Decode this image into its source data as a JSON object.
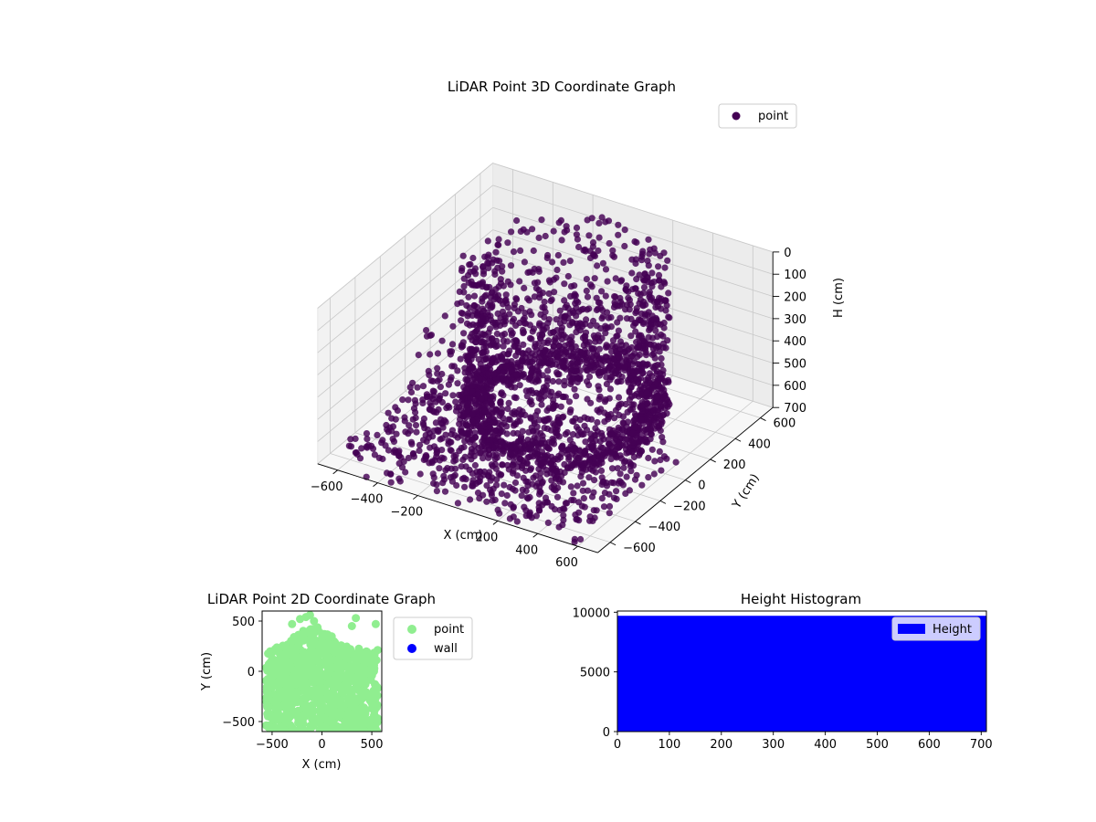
{
  "chart_data": [
    {
      "type": "scatter3d",
      "title": "LiDAR Point 3D Coordinate Graph",
      "xlabel": "X (cm)",
      "ylabel": "Y (cm)",
      "zlabel": "H (cm)",
      "xlim": [
        -700,
        700
      ],
      "ylim": [
        -700,
        700
      ],
      "zlim": [
        700,
        0
      ],
      "x_ticks": [
        -600,
        -400,
        -200,
        200,
        400,
        600
      ],
      "x_tick_labels": [
        "−600",
        "−400",
        "−200",
        "200",
        "400",
        "600"
      ],
      "y_ticks": [
        -600,
        -400,
        -200,
        0,
        200,
        400,
        600
      ],
      "y_tick_labels": [
        "−600",
        "−400",
        "−200",
        "0",
        "200",
        "400",
        "600"
      ],
      "z_ticks": [
        0,
        100,
        200,
        300,
        400,
        500,
        600,
        700
      ],
      "z_tick_labels": [
        "0",
        "100",
        "200",
        "300",
        "400",
        "500",
        "600",
        "700"
      ],
      "grid": true,
      "legend": {
        "placement": "upper-right",
        "entries": [
          {
            "label": "point",
            "color": "#440154"
          }
        ]
      },
      "series": [
        {
          "name": "point",
          "color": "#440154",
          "structure": "dense cylindrical shell of scanned points: radius ~450 cm centred near (x=0, y=150), spanning heights ~0 to 700 cm, plus a sparse scatter of outlier points across the floor extending to the axis limits"
        }
      ]
    },
    {
      "type": "scatter",
      "title": "LiDAR Point 2D Coordinate Graph",
      "xlabel": "X (cm)",
      "ylabel": "Y (cm)",
      "xlim": [
        -600,
        600
      ],
      "ylim": [
        -600,
        600
      ],
      "x_ticks": [
        -500,
        0,
        500
      ],
      "x_tick_labels": [
        "−500",
        "0",
        "500"
      ],
      "y_ticks": [
        -500,
        0,
        500
      ],
      "y_tick_labels": [
        "−500",
        "0",
        "500"
      ],
      "legend": {
        "placement": "outside-right",
        "entries": [
          {
            "label": "point",
            "color": "#90ee90"
          },
          {
            "label": "wall",
            "color": "#0000ff"
          }
        ]
      },
      "series": [
        {
          "name": "point",
          "color": "#90ee90",
          "region": "filled dome: y from -600 up to ~+150..+600 (highest near x≈-100), spanning x from about -560 to +560"
        },
        {
          "name": "wall",
          "color": "#0000ff",
          "values": []
        }
      ]
    },
    {
      "type": "bar",
      "title": "Height Histogram",
      "xlim": [
        0,
        710
      ],
      "ylim": [
        0,
        10100
      ],
      "x_ticks": [
        0,
        100,
        200,
        300,
        400,
        500,
        600,
        700
      ],
      "x_tick_labels": [
        "0",
        "100",
        "200",
        "300",
        "400",
        "500",
        "600",
        "700"
      ],
      "y_ticks": [
        0,
        5000,
        10000
      ],
      "y_tick_labels": [
        "0",
        "5000",
        "10000"
      ],
      "legend": {
        "placement": "upper-right",
        "entries": [
          {
            "label": "Height",
            "color": "#0000ff"
          }
        ]
      },
      "series": [
        {
          "name": "Height",
          "color": "#0000ff",
          "bins": [
            {
              "x0": 0,
              "x1": 710,
              "count": 9700
            }
          ]
        }
      ]
    }
  ]
}
